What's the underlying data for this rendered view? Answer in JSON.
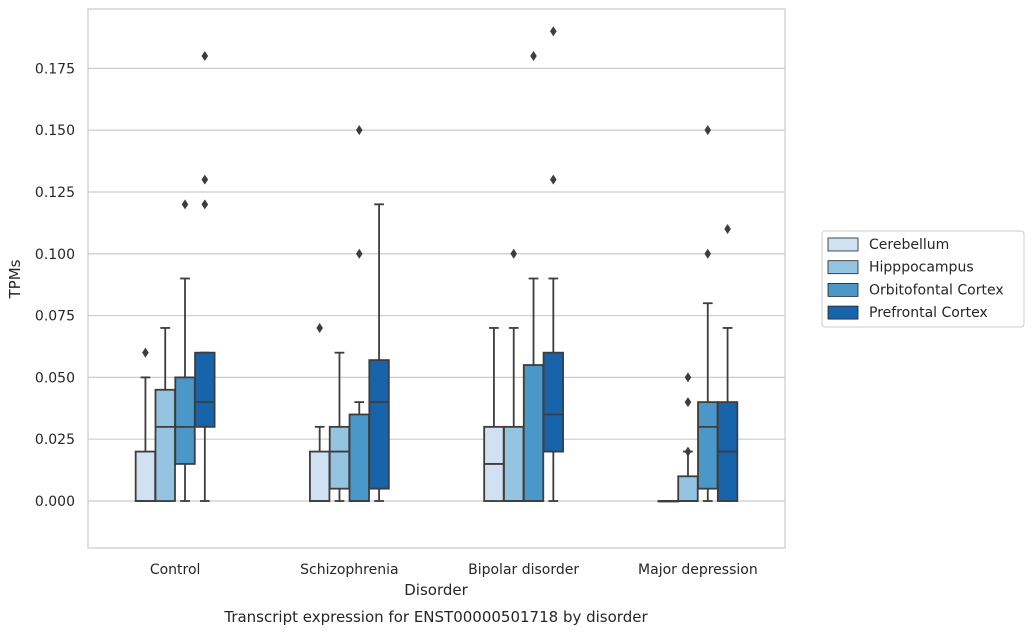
{
  "chart_data": {
    "type": "box",
    "caption": "Transcript expression for ENST00000501718 by disorder",
    "xlabel": "Disorder",
    "ylabel": "TPMs",
    "ylim": [
      -0.019,
      0.199
    ],
    "yticks": [
      0.0,
      0.025,
      0.05,
      0.075,
      0.1,
      0.125,
      0.15,
      0.175
    ],
    "ytick_labels": [
      "0.000",
      "0.025",
      "0.050",
      "0.075",
      "0.100",
      "0.125",
      "0.150",
      "0.175"
    ],
    "grid": "horizontal",
    "legend_position": "right-outside",
    "categories": [
      "Control",
      "Schizophrenia",
      "Bipolar disorder",
      "Major depression"
    ],
    "series": [
      {
        "name": "Cerebellum",
        "color": "#d0e1f2",
        "boxes": [
          {
            "whislo": 0.0,
            "q1": 0.0,
            "med": 0.0,
            "q3": 0.02,
            "whishi": 0.05,
            "fliers": [
              0.06
            ]
          },
          {
            "whislo": 0.0,
            "q1": 0.0,
            "med": 0.0,
            "q3": 0.02,
            "whishi": 0.03,
            "fliers": [
              0.07
            ]
          },
          {
            "whislo": 0.0,
            "q1": 0.0,
            "med": 0.015,
            "q3": 0.03,
            "whishi": 0.07,
            "fliers": []
          },
          {
            "whislo": 0.0,
            "q1": 0.0,
            "med": 0.0,
            "q3": 0.0,
            "whishi": 0.0,
            "fliers": []
          }
        ]
      },
      {
        "name": "Hipppocampus",
        "color": "#94c4df",
        "boxes": [
          {
            "whislo": 0.0,
            "q1": 0.0,
            "med": 0.03,
            "q3": 0.045,
            "whishi": 0.07,
            "fliers": []
          },
          {
            "whislo": 0.0,
            "q1": 0.005,
            "med": 0.02,
            "q3": 0.03,
            "whishi": 0.06,
            "fliers": []
          },
          {
            "whislo": 0.0,
            "q1": 0.0,
            "med": 0.0,
            "q3": 0.03,
            "whishi": 0.07,
            "fliers": [
              0.1
            ]
          },
          {
            "whislo": 0.0,
            "q1": 0.0,
            "med": 0.0,
            "q3": 0.01,
            "whishi": 0.02,
            "fliers": [
              0.02
            ]
          }
        ]
      },
      {
        "name": "Orbitofontal Cortex",
        "color": "#4a98c9",
        "boxes": [
          {
            "whislo": 0.0,
            "q1": 0.015,
            "med": 0.03,
            "q3": 0.05,
            "whishi": 0.09,
            "fliers": [
              0.12
            ]
          },
          {
            "whislo": 0.0,
            "q1": 0.0,
            "med": 0.0,
            "q3": 0.035,
            "whishi": 0.04,
            "fliers": [
              0.1,
              0.15
            ]
          },
          {
            "whislo": 0.0,
            "q1": 0.0,
            "med": 0.0,
            "q3": 0.055,
            "whishi": 0.09,
            "fliers": [
              0.18
            ]
          },
          {
            "whislo": 0.0,
            "q1": 0.005,
            "med": 0.03,
            "q3": 0.04,
            "whishi": 0.08,
            "fliers": [
              0.1,
              0.15
            ]
          }
        ]
      },
      {
        "name": "Prefrontal Cortex",
        "color": "#1764ab",
        "boxes": [
          {
            "whislo": 0.0,
            "q1": 0.03,
            "med": 0.04,
            "q3": 0.06,
            "whishi": 0.06,
            "fliers": [
              0.12,
              0.13,
              0.18
            ]
          },
          {
            "whislo": 0.0,
            "q1": 0.005,
            "med": 0.04,
            "q3": 0.057,
            "whishi": 0.12,
            "fliers": []
          },
          {
            "whislo": 0.0,
            "q1": 0.02,
            "med": 0.035,
            "q3": 0.06,
            "whishi": 0.09,
            "fliers": [
              0.13,
              0.19
            ]
          },
          {
            "whislo": 0.0,
            "q1": 0.0,
            "med": 0.02,
            "q3": 0.04,
            "whishi": 0.07,
            "fliers": [
              0.11
            ]
          }
        ]
      }
    ],
    "extra_fliers": [
      {
        "category": "Major depression",
        "series": "Hipppocampus",
        "values": [
          0.04,
          0.05
        ]
      }
    ]
  }
}
